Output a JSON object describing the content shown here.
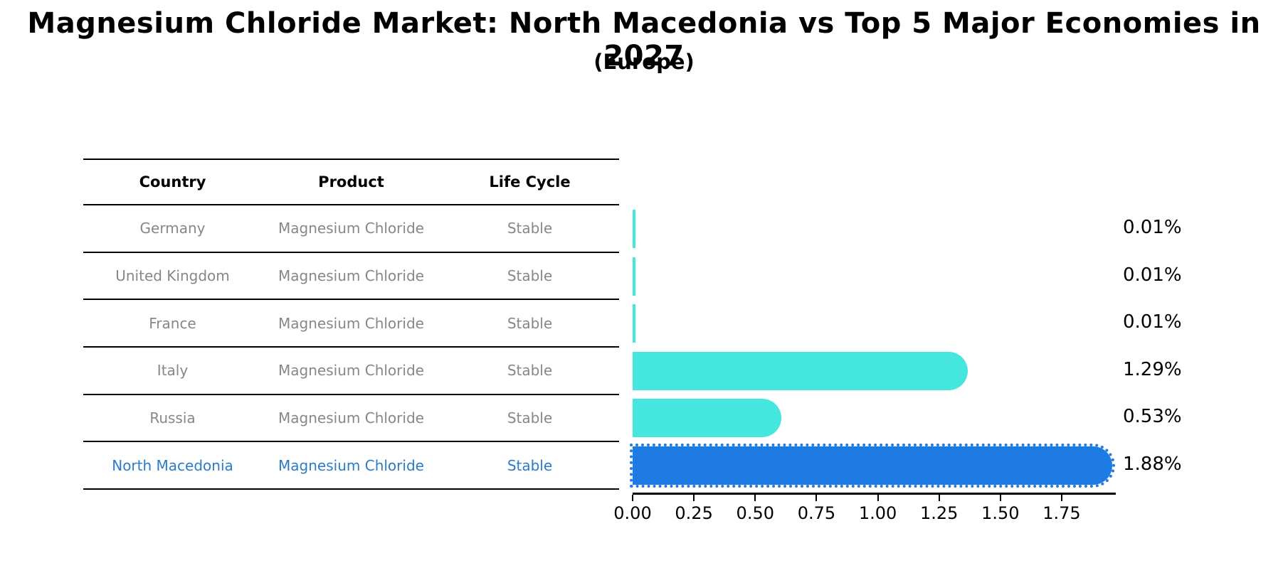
{
  "chart_data": {
    "type": "bar",
    "orientation": "horizontal",
    "title": "Magnesium Chloride Market: North Macedonia vs Top 5 Major Economies in 2027",
    "subtitle": "(Europe)",
    "categories": [
      "Germany",
      "United Kingdom",
      "France",
      "Italy",
      "Russia",
      "North Macedonia"
    ],
    "values": [
      0.01,
      0.01,
      0.01,
      1.29,
      0.53,
      1.88
    ],
    "value_labels": [
      "0.01%",
      "0.01%",
      "0.01%",
      "1.29%",
      "0.53%",
      "1.88%"
    ],
    "unit": "%",
    "x_ticks": [
      "0.00",
      "0.25",
      "0.50",
      "0.75",
      "1.00",
      "1.25",
      "1.50",
      "1.75"
    ],
    "x_tick_values": [
      0.0,
      0.25,
      0.5,
      0.75,
      1.0,
      1.25,
      1.5,
      1.75
    ],
    "xlim": [
      0,
      1.97
    ],
    "grid": false,
    "legend": "none",
    "bar_color": "#44E6DE",
    "highlight_color": "#1E7BE3",
    "highlight_index": 5,
    "highlight_category": "North Macedonia"
  },
  "table": {
    "headers": [
      "Country",
      "Product",
      "Life Cycle"
    ],
    "rows": [
      {
        "country": "Germany",
        "product": "Magnesium Chloride",
        "life_cycle": "Stable",
        "highlight": false
      },
      {
        "country": "United Kingdom",
        "product": "Magnesium Chloride",
        "life_cycle": "Stable",
        "highlight": false
      },
      {
        "country": "France",
        "product": "Magnesium Chloride",
        "life_cycle": "Stable",
        "highlight": false
      },
      {
        "country": "Italy",
        "product": "Magnesium Chloride",
        "life_cycle": "Stable",
        "highlight": false
      },
      {
        "country": "Russia",
        "product": "Magnesium Chloride",
        "life_cycle": "Stable",
        "highlight": false
      },
      {
        "country": "North Macedonia",
        "product": "Magnesium Chloride",
        "life_cycle": "Stable",
        "highlight": true
      }
    ]
  },
  "colors": {
    "cell_text": "#878787",
    "highlight_text": "#2B7BC7",
    "bar_cyan": "#44E6DE",
    "bar_blue": "#1E7BE3",
    "line_black": "#000000"
  }
}
